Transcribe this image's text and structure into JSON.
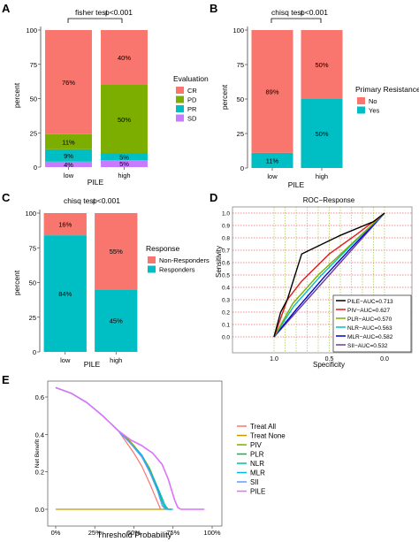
{
  "colors": {
    "cr": "#F8766D",
    "pd": "#7CAE00",
    "pr": "#00BFC4",
    "sd": "#C77CFF",
    "treat_all": "#F8766D",
    "treat_none": "#C49A00",
    "piv": "#7CAE00",
    "plr": "#00BA38",
    "nlr": "#00C19F",
    "mlr": "#00B9E3",
    "sii": "#619CFF",
    "pile": "#DB72FB",
    "roc_pile": "#000000",
    "roc_piv": "#E41A1C",
    "roc_plr": "#7CAE00",
    "roc_nlr": "#00BFC4",
    "roc_mlr": "#0000CC",
    "roc_sii": "#6A3D9A",
    "roc_ref": "#AAAAAA",
    "roc_grid": "#E31A1C"
  },
  "panels": {
    "a": {
      "letter": "A",
      "test": "fisher test",
      "pval": "p<0.001",
      "ylabel": "percent",
      "xlabel": "PILE",
      "legend_title": "Evaluation",
      "legend": [
        "CR",
        "PD",
        "PR",
        "SD"
      ]
    },
    "b": {
      "letter": "B",
      "test": "chisq test",
      "pval": "p<0.001",
      "ylabel": "percent",
      "xlabel": "PILE",
      "legend_title": "Primary Resistance",
      "legend": [
        "No",
        "Yes"
      ]
    },
    "c": {
      "letter": "C",
      "test": "chisq test",
      "pval": "p<0.001",
      "ylabel": "percent",
      "xlabel": "PILE",
      "legend_title": "Response",
      "legend": [
        "Non-Responders",
        "Responders"
      ]
    },
    "d": {
      "letter": "D",
      "title": "ROC−Response",
      "ylabel": "Sensitivity",
      "xlabel": "Specificity",
      "legend": [
        "PILE−AUC=0.713",
        "PIV−AUC=0.627",
        "PLR−AUC=0.570",
        "NLR−AUC=0.563",
        "MLR−AUC=0.582",
        "SII−AUC=0.532"
      ]
    },
    "e": {
      "letter": "E",
      "ylabel": "Net Benefit",
      "xlabel": "Threshold Probability",
      "legend": [
        "Treat All",
        "Treat None",
        "PIV",
        "PLR",
        "NLR",
        "MLR",
        "SII",
        "PILE"
      ]
    }
  },
  "chart_data": [
    {
      "panel": "A",
      "type": "bar",
      "stacked": true,
      "categories": [
        "low",
        "high"
      ],
      "series": [
        {
          "name": "CR",
          "values": [
            76,
            40
          ]
        },
        {
          "name": "PD",
          "values": [
            11,
            50
          ]
        },
        {
          "name": "PR",
          "values": [
            9,
            5
          ]
        },
        {
          "name": "SD",
          "values": [
            4,
            5
          ]
        }
      ],
      "data_labels": [
        [
          "76%",
          "11%",
          "9%",
          "4%"
        ],
        [
          "40%",
          "50%",
          "5%",
          "5%"
        ]
      ],
      "yticks": [
        "0",
        "25",
        "50",
        "75",
        "100"
      ],
      "ylim": [
        0,
        100
      ],
      "legend_placement": "right"
    },
    {
      "panel": "B",
      "type": "bar",
      "stacked": true,
      "categories": [
        "low",
        "high"
      ],
      "series": [
        {
          "name": "No",
          "values": [
            89,
            50
          ]
        },
        {
          "name": "Yes",
          "values": [
            11,
            50
          ]
        }
      ],
      "data_labels": [
        [
          "89%",
          "11%"
        ],
        [
          "50%",
          "50%"
        ]
      ],
      "yticks": [
        "0",
        "25",
        "50",
        "75",
        "100"
      ],
      "ylim": [
        0,
        100
      ],
      "legend_placement": "right"
    },
    {
      "panel": "C",
      "type": "bar",
      "stacked": true,
      "categories": [
        "low",
        "high"
      ],
      "series": [
        {
          "name": "Non-Responders",
          "values": [
            16,
            55
          ]
        },
        {
          "name": "Responders",
          "values": [
            84,
            45
          ]
        }
      ],
      "data_labels": [
        [
          "16%",
          "84%"
        ],
        [
          "55%",
          "45%"
        ]
      ],
      "yticks": [
        "0",
        "25",
        "50",
        "75",
        "100"
      ],
      "ylim": [
        0,
        100
      ],
      "legend_placement": "right"
    },
    {
      "panel": "D",
      "type": "line",
      "xticks": [
        "1.0",
        "0.5",
        "0.0"
      ],
      "yticks": [
        "0.0",
        "0.1",
        "0.2",
        "0.3",
        "0.4",
        "0.5",
        "0.6",
        "0.7",
        "0.8",
        "0.9",
        "1.0"
      ],
      "xlim": [
        1.0,
        0.0
      ],
      "ylim": [
        0.0,
        1.0
      ],
      "series": [
        {
          "name": "PILE−AUC=0.713",
          "points": [
            [
              1.0,
              0.0
            ],
            [
              0.94,
              0.2
            ],
            [
              0.88,
              0.3
            ],
            [
              0.75,
              0.67
            ],
            [
              0.4,
              0.82
            ],
            [
              0.13,
              0.92
            ],
            [
              0.1,
              0.93
            ],
            [
              0.0,
              1.0
            ]
          ]
        },
        {
          "name": "PIV−AUC=0.627",
          "points": [
            [
              1.0,
              0.0
            ],
            [
              0.88,
              0.3
            ],
            [
              0.75,
              0.45
            ],
            [
              0.5,
              0.67
            ],
            [
              0.25,
              0.83
            ],
            [
              0.0,
              1.0
            ]
          ]
        },
        {
          "name": "PLR−AUC=0.570",
          "points": [
            [
              1.0,
              0.0
            ],
            [
              0.83,
              0.27
            ],
            [
              0.6,
              0.5
            ],
            [
              0.3,
              0.75
            ],
            [
              0.0,
              1.0
            ]
          ]
        },
        {
          "name": "NLR−AUC=0.563",
          "points": [
            [
              1.0,
              0.0
            ],
            [
              0.82,
              0.25
            ],
            [
              0.58,
              0.49
            ],
            [
              0.28,
              0.76
            ],
            [
              0.0,
              1.0
            ]
          ]
        },
        {
          "name": "MLR−AUC=0.582",
          "points": [
            [
              1.0,
              0.0
            ],
            [
              0.8,
              0.22
            ],
            [
              0.55,
              0.48
            ],
            [
              0.3,
              0.72
            ],
            [
              0.0,
              1.0
            ]
          ]
        },
        {
          "name": "SII−AUC=0.532",
          "points": [
            [
              1.0,
              0.0
            ],
            [
              0.7,
              0.3
            ],
            [
              0.4,
              0.6
            ],
            [
              0.15,
              0.85
            ],
            [
              0.0,
              1.0
            ]
          ]
        }
      ],
      "reference_line": [
        [
          1.0,
          0.0
        ],
        [
          0.0,
          1.0
        ]
      ],
      "grid": "dotted",
      "legend_placement": "bottom-right"
    },
    {
      "panel": "E",
      "type": "line",
      "xticks": [
        "0%",
        "25%",
        "50%",
        "75%",
        "100%"
      ],
      "yticks": [
        "0.0",
        "0.2",
        "0.4",
        "0.6"
      ],
      "xlim": [
        0,
        100
      ],
      "ylim": [
        -0.02,
        0.68
      ],
      "series": [
        {
          "name": "Treat All",
          "points": [
            [
              0,
              0.65
            ],
            [
              10,
              0.62
            ],
            [
              20,
              0.57
            ],
            [
              30,
              0.5
            ],
            [
              40,
              0.42
            ],
            [
              50,
              0.3
            ],
            [
              55,
              0.23
            ],
            [
              60,
              0.14
            ],
            [
              65,
              0.04
            ],
            [
              67,
              0.0
            ]
          ]
        },
        {
          "name": "Treat None",
          "points": [
            [
              0,
              0.0
            ],
            [
              70,
              0.0
            ]
          ]
        },
        {
          "name": "PIV",
          "points": [
            [
              0,
              0.65
            ],
            [
              10,
              0.62
            ],
            [
              20,
              0.57
            ],
            [
              30,
              0.5
            ],
            [
              40,
              0.42
            ],
            [
              48,
              0.36
            ],
            [
              55,
              0.29
            ],
            [
              60,
              0.22
            ],
            [
              65,
              0.12
            ],
            [
              70,
              0.02
            ],
            [
              72,
              0.0
            ],
            [
              74,
              0.0
            ]
          ]
        },
        {
          "name": "PLR",
          "points": [
            [
              0,
              0.65
            ],
            [
              10,
              0.62
            ],
            [
              20,
              0.57
            ],
            [
              30,
              0.5
            ],
            [
              40,
              0.42
            ],
            [
              48,
              0.35
            ],
            [
              55,
              0.28
            ],
            [
              60,
              0.21
            ],
            [
              65,
              0.11
            ],
            [
              69,
              0.02
            ],
            [
              71,
              0.0
            ],
            [
              74,
              0.0
            ]
          ]
        },
        {
          "name": "NLR",
          "points": [
            [
              0,
              0.65
            ],
            [
              10,
              0.62
            ],
            [
              20,
              0.57
            ],
            [
              30,
              0.5
            ],
            [
              40,
              0.42
            ],
            [
              48,
              0.35
            ],
            [
              55,
              0.28
            ],
            [
              60,
              0.2
            ],
            [
              65,
              0.1
            ],
            [
              69,
              0.02
            ],
            [
              71,
              0.0
            ],
            [
              74,
              0.0
            ]
          ]
        },
        {
          "name": "MLR",
          "points": [
            [
              0,
              0.65
            ],
            [
              10,
              0.62
            ],
            [
              20,
              0.57
            ],
            [
              30,
              0.5
            ],
            [
              40,
              0.42
            ],
            [
              48,
              0.35
            ],
            [
              55,
              0.29
            ],
            [
              60,
              0.21
            ],
            [
              65,
              0.12
            ],
            [
              70,
              0.02
            ],
            [
              72,
              0.0
            ],
            [
              75,
              0.0
            ]
          ]
        },
        {
          "name": "SII",
          "points": [
            [
              0,
              0.65
            ],
            [
              10,
              0.62
            ],
            [
              20,
              0.57
            ],
            [
              30,
              0.5
            ],
            [
              40,
              0.42
            ],
            [
              48,
              0.35
            ],
            [
              55,
              0.28
            ],
            [
              60,
              0.2
            ],
            [
              65,
              0.1
            ],
            [
              68,
              0.02
            ],
            [
              70,
              0.0
            ],
            [
              73,
              0.0
            ]
          ]
        },
        {
          "name": "PILE",
          "points": [
            [
              0,
              0.65
            ],
            [
              10,
              0.62
            ],
            [
              20,
              0.57
            ],
            [
              30,
              0.5
            ],
            [
              40,
              0.42
            ],
            [
              48,
              0.37
            ],
            [
              55,
              0.34
            ],
            [
              62,
              0.3
            ],
            [
              68,
              0.24
            ],
            [
              72,
              0.16
            ],
            [
              76,
              0.05
            ],
            [
              78,
              0.01
            ],
            [
              80,
              0.0
            ],
            [
              95,
              0.0
            ]
          ]
        }
      ],
      "legend_placement": "right"
    }
  ]
}
